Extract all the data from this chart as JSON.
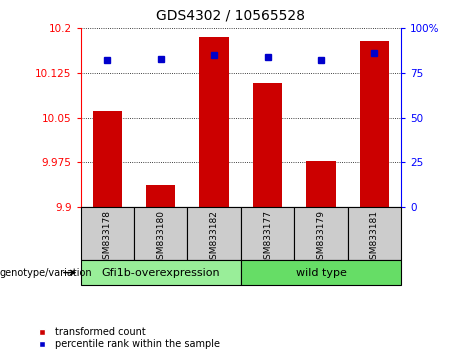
{
  "title": "GDS4302 / 10565528",
  "samples": [
    "GSM833178",
    "GSM833180",
    "GSM833182",
    "GSM833177",
    "GSM833179",
    "GSM833181"
  ],
  "transformed_counts": [
    10.062,
    9.937,
    10.185,
    10.108,
    9.978,
    10.178
  ],
  "percentile_ranks": [
    82,
    83,
    85,
    84,
    82,
    86
  ],
  "y_min": 9.9,
  "y_max": 10.2,
  "y_ticks": [
    9.9,
    9.975,
    10.05,
    10.125,
    10.2
  ],
  "y_tick_labels": [
    "9.9",
    "9.975",
    "10.05",
    "10.125",
    "10.2"
  ],
  "y2_ticks": [
    0,
    25,
    50,
    75,
    100
  ],
  "y2_tick_labels": [
    "0",
    "25",
    "50",
    "75",
    "100%"
  ],
  "bar_color": "#cc0000",
  "dot_color": "#0000cc",
  "groups": [
    {
      "label": "Gfi1b-overexpression",
      "indices": [
        0,
        1,
        2
      ],
      "color": "#99ee99"
    },
    {
      "label": "wild type",
      "indices": [
        3,
        4,
        5
      ],
      "color": "#66dd66"
    }
  ],
  "genotype_label": "genotype/variation",
  "legend_red": "transformed count",
  "legend_blue": "percentile rank within the sample",
  "sample_bg_color": "#cccccc",
  "title_fontsize": 10,
  "tick_fontsize": 7.5,
  "sample_fontsize": 6.5,
  "group_fontsize": 8,
  "legend_fontsize": 7
}
